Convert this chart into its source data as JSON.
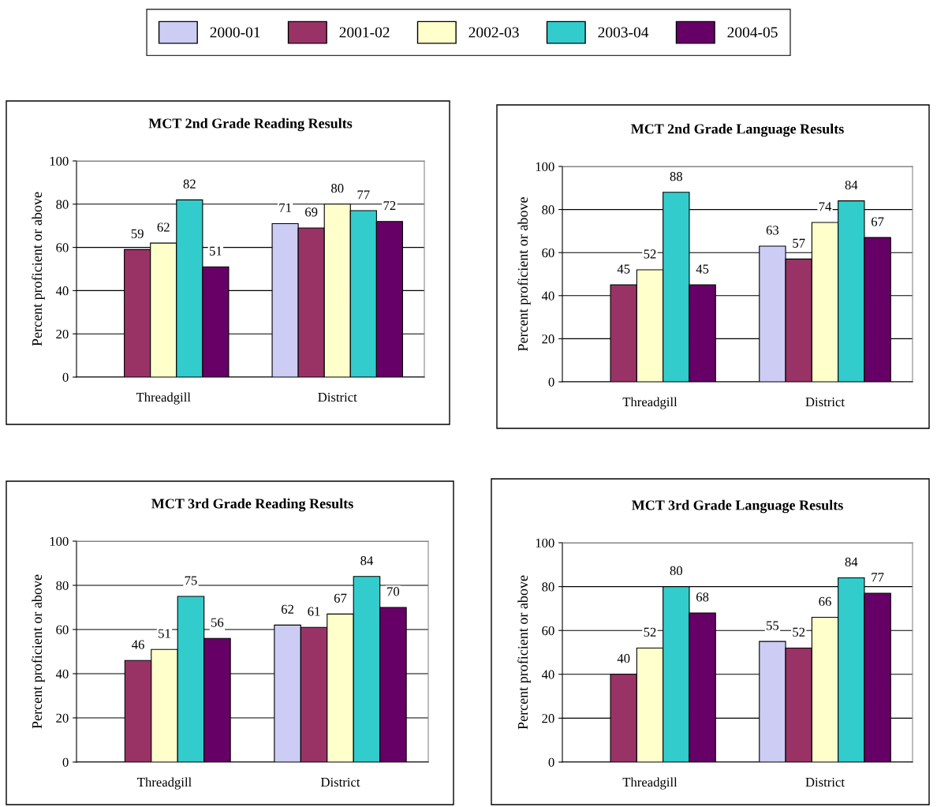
{
  "chart_data": [
    {
      "type": "bar",
      "title": "MCT 2nd Grade Reading Results",
      "ylabel": "Percent proficient or above",
      "categories": [
        "Threadgill",
        "District"
      ],
      "ylim": [
        0,
        100
      ],
      "yticks": [
        0,
        20,
        40,
        60,
        80,
        100
      ],
      "grid": "y",
      "data_labels": true,
      "legend": "top",
      "series": [
        {
          "name": "2000-01",
          "color": "#ccccf5",
          "values": [
            null,
            71
          ]
        },
        {
          "name": "2001-02",
          "color": "#993366",
          "values": [
            59,
            69
          ]
        },
        {
          "name": "2002-03",
          "color": "#ffffcc",
          "values": [
            62,
            80
          ]
        },
        {
          "name": "2003-04",
          "color": "#33cccc",
          "values": [
            82,
            77
          ]
        },
        {
          "name": "2004-05",
          "color": "#660066",
          "values": [
            51,
            72
          ]
        }
      ]
    },
    {
      "type": "bar",
      "title": "MCT 2nd Grade Language Results",
      "ylabel": "Percent proficient or above",
      "categories": [
        "Threadgill",
        "District"
      ],
      "ylim": [
        0,
        100
      ],
      "yticks": [
        0,
        20,
        40,
        60,
        80,
        100
      ],
      "grid": "y",
      "data_labels": true,
      "series": [
        {
          "name": "2000-01",
          "color": "#ccccf5",
          "values": [
            null,
            63
          ]
        },
        {
          "name": "2001-02",
          "color": "#993366",
          "values": [
            45,
            57
          ]
        },
        {
          "name": "2002-03",
          "color": "#ffffcc",
          "values": [
            52,
            74
          ]
        },
        {
          "name": "2003-04",
          "color": "#33cccc",
          "values": [
            88,
            84
          ]
        },
        {
          "name": "2004-05",
          "color": "#660066",
          "values": [
            45,
            67
          ]
        }
      ]
    },
    {
      "type": "bar",
      "title": "MCT 3rd Grade Reading Results",
      "ylabel": "Percent proficient or above",
      "categories": [
        "Threadgill",
        "District"
      ],
      "ylim": [
        0,
        100
      ],
      "yticks": [
        0,
        20,
        40,
        60,
        80,
        100
      ],
      "grid": "y",
      "data_labels": true,
      "series": [
        {
          "name": "2000-01",
          "color": "#ccccf5",
          "values": [
            null,
            62
          ]
        },
        {
          "name": "2001-02",
          "color": "#993366",
          "values": [
            46,
            61
          ]
        },
        {
          "name": "2002-03",
          "color": "#ffffcc",
          "values": [
            51,
            67
          ]
        },
        {
          "name": "2003-04",
          "color": "#33cccc",
          "values": [
            75,
            84
          ]
        },
        {
          "name": "2004-05",
          "color": "#660066",
          "values": [
            56,
            70
          ]
        }
      ]
    },
    {
      "type": "bar",
      "title": "MCT 3rd Grade Language Results",
      "ylabel": "Percent proficient or above",
      "categories": [
        "Threadgill",
        "District"
      ],
      "ylim": [
        0,
        100
      ],
      "yticks": [
        0,
        20,
        40,
        60,
        80,
        100
      ],
      "grid": "y",
      "data_labels": true,
      "series": [
        {
          "name": "2000-01",
          "color": "#ccccf5",
          "values": [
            null,
            55
          ]
        },
        {
          "name": "2001-02",
          "color": "#993366",
          "values": [
            40,
            52
          ]
        },
        {
          "name": "2002-03",
          "color": "#ffffcc",
          "values": [
            52,
            66
          ]
        },
        {
          "name": "2003-04",
          "color": "#33cccc",
          "values": [
            80,
            84
          ]
        },
        {
          "name": "2004-05",
          "color": "#660066",
          "values": [
            68,
            77
          ]
        }
      ]
    }
  ]
}
